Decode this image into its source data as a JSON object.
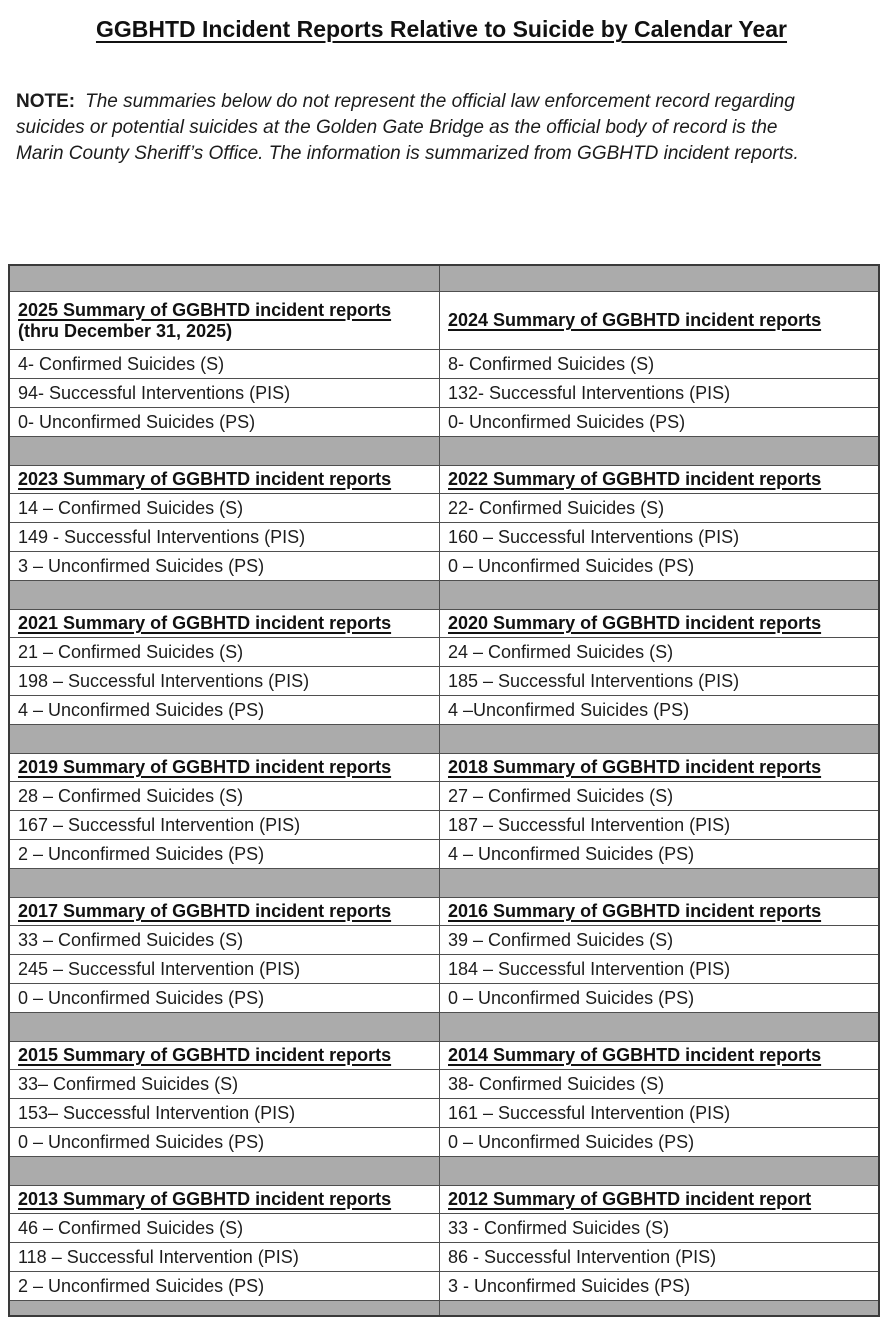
{
  "title": "GGBHTD Incident Reports Relative to Suicide by Calendar Year",
  "note": {
    "label": "NOTE:",
    "lines": [
      "The summaries below do not represent the official law enforcement record regarding",
      "suicides or potential suicides at the Golden Gate Bridge as the official body of record is the",
      "Marin County Sheriff’s Office.  The information is summarized from GGBHTD incident reports."
    ]
  },
  "colors": {
    "separator_gray": "#ababab",
    "border_dark": "#3a3a3a",
    "border_inner": "#4f4f4f"
  },
  "table": {
    "blocks": [
      {
        "left": {
          "header": "2025 Summary of GGBHTD incident reports",
          "subheader": "(thru December 31, 2025)",
          "rows": [
            "4- Confirmed Suicides (S)",
            "94- Successful Interventions (PIS)",
            "0- Unconfirmed Suicides (PS)"
          ]
        },
        "right": {
          "header": "2024 Summary of GGBHTD incident reports",
          "subheader": "",
          "rows": [
            "8- Confirmed Suicides (S)",
            "132- Successful Interventions (PIS)",
            "0- Unconfirmed Suicides (PS)"
          ]
        }
      },
      {
        "left": {
          "header": "2023 Summary of GGBHTD incident reports",
          "rows": [
            "14 – Confirmed Suicides (S)",
            "149 - Successful Interventions (PIS)",
            "3 – Unconfirmed Suicides (PS)"
          ]
        },
        "right": {
          "header": "2022 Summary of GGBHTD incident reports",
          "rows": [
            "22- Confirmed Suicides (S)",
            "160 – Successful Interventions (PIS)",
            "0 – Unconfirmed Suicides (PS)"
          ]
        }
      },
      {
        "left": {
          "header": "2021 Summary of GGBHTD incident reports",
          "rows": [
            "21 – Confirmed Suicides (S)",
            "198 – Successful Interventions (PIS)",
            "4 – Unconfirmed Suicides (PS)"
          ]
        },
        "right": {
          "header": "2020 Summary of GGBHTD incident reports",
          "rows": [
            "24 – Confirmed Suicides (S)",
            "185 – Successful Interventions (PIS)",
            "4 –Unconfirmed Suicides (PS)"
          ]
        }
      },
      {
        "left": {
          "header": "2019 Summary of GGBHTD incident reports",
          "rows": [
            "28 – Confirmed Suicides (S)",
            "167 – Successful Intervention (PIS)",
            "2 – Unconfirmed Suicides (PS)"
          ]
        },
        "right": {
          "header": "2018 Summary of GGBHTD incident reports",
          "rows": [
            "27 – Confirmed Suicides (S)",
            "187 – Successful Intervention (PIS)",
            "4 – Unconfirmed Suicides (PS)"
          ]
        }
      },
      {
        "left": {
          "header": "2017 Summary of GGBHTD incident reports",
          "rows": [
            "33 – Confirmed Suicides (S)",
            "245 – Successful Intervention (PIS)",
            "0 – Unconfirmed Suicides (PS)"
          ]
        },
        "right": {
          "header": "2016 Summary of GGBHTD incident reports",
          "rows": [
            "39 – Confirmed Suicides (S)",
            "184 – Successful Intervention (PIS)",
            "0 – Unconfirmed Suicides (PS)"
          ]
        }
      },
      {
        "left": {
          "header": "2015 Summary of GGBHTD incident reports",
          "rows": [
            "33– Confirmed Suicides (S)",
            "153– Successful Intervention (PIS)",
            "0 – Unconfirmed Suicides (PS)"
          ]
        },
        "right": {
          "header": "2014 Summary of GGBHTD incident reports",
          "rows": [
            "38- Confirmed Suicides (S)",
            "161 – Successful Intervention (PIS)",
            "0 – Unconfirmed Suicides (PS)"
          ]
        }
      },
      {
        "left": {
          "header": "2013 Summary of GGBHTD incident reports",
          "rows": [
            "46 – Confirmed Suicides (S)",
            "118 – Successful Intervention (PIS)",
            "2 – Unconfirmed Suicides (PS)"
          ]
        },
        "right": {
          "header": "2012 Summary of GGBHTD incident report",
          "rows": [
            "33 - Confirmed Suicides (S)",
            "86 - Successful Intervention (PIS)",
            "3 - Unconfirmed Suicides (PS)"
          ]
        }
      }
    ]
  }
}
